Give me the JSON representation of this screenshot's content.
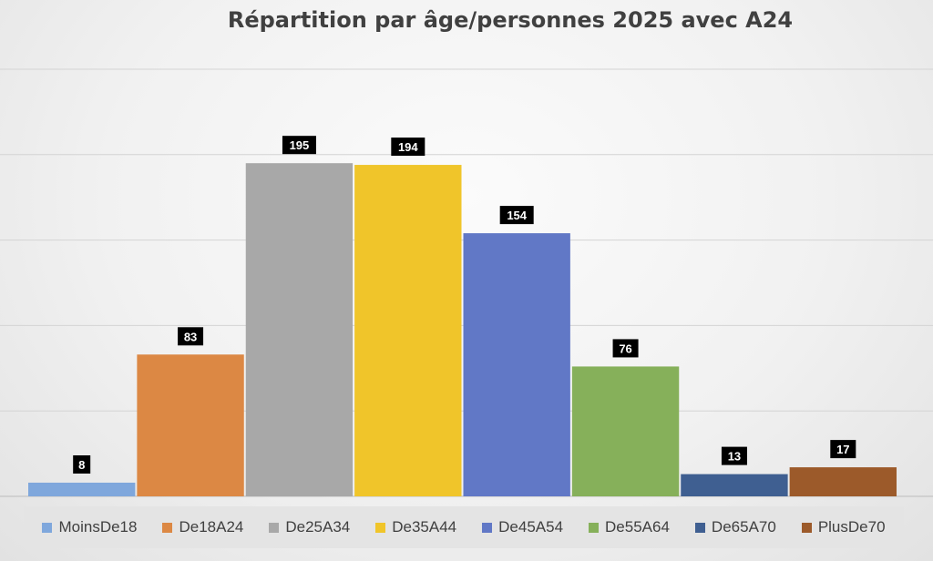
{
  "chart_data": {
    "type": "bar",
    "title": "Répartition par âge/personnes 2025 avec A24",
    "xlabel": "",
    "ylabel": "",
    "ylim": [
      0,
      250
    ],
    "grid": true,
    "legend_position": "bottom",
    "series": [
      {
        "name": "MoinsDe18",
        "value": 8,
        "color": "#7fa7dc"
      },
      {
        "name": "De18A24",
        "value": 83,
        "color": "#dc8844"
      },
      {
        "name": "De25A34",
        "value": 195,
        "color": "#a8a8a8"
      },
      {
        "name": "De35A44",
        "value": 194,
        "color": "#f0c52a"
      },
      {
        "name": "De45A54",
        "value": 154,
        "color": "#6178c6"
      },
      {
        "name": "De55A64",
        "value": 76,
        "color": "#86b05a"
      },
      {
        "name": "De65A70",
        "value": 13,
        "color": "#3f5f91"
      },
      {
        "name": "PlusDe70",
        "value": 17,
        "color": "#9c5a2a"
      }
    ]
  }
}
